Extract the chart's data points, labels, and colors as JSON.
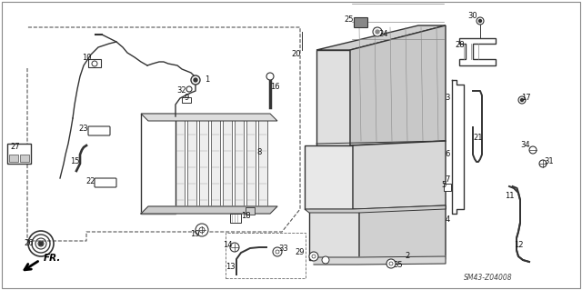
{
  "background_color": "#ffffff",
  "line_color": "#333333",
  "fig_width": 6.4,
  "fig_height": 3.19,
  "dpi": 100,
  "watermark": "SM43-Z04008",
  "fr_text": "FR.",
  "label_fontsize": 6.0,
  "border_color": "#aaaaaa"
}
